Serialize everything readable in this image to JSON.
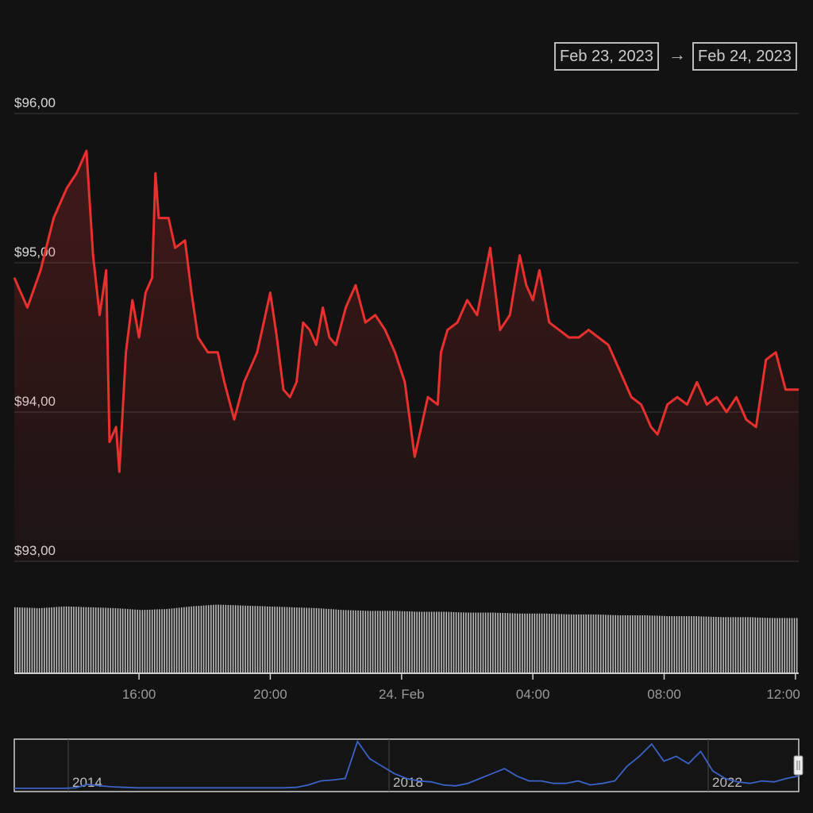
{
  "range_selector": {
    "from": "Feb 23, 2023",
    "separator": "→",
    "to": "Feb 24, 2023"
  },
  "colors": {
    "background": "#121212",
    "price_line": "#e8302e",
    "volume_bars": "#bdbdbd",
    "navigator_line": "#3b62c4",
    "grid": "#3a3a3a"
  },
  "chart_data": [
    {
      "type": "line",
      "title": "",
      "xlabel": "",
      "ylabel": "",
      "ylim": [
        93,
        96
      ],
      "y_ticks": [
        "$93,00",
        "$94,00",
        "$95,00",
        "$96,00"
      ],
      "x_ticks": [
        "16:00",
        "20:00",
        "24. Feb",
        "04:00",
        "08:00",
        "12:00"
      ],
      "x_range_hours": [
        12.2,
        36.1
      ],
      "grid": "horizontal",
      "series": [
        {
          "x": [
            12.2,
            12.6,
            13.0,
            13.4,
            13.8,
            14.1,
            14.4,
            14.6,
            14.8,
            15.0,
            15.1,
            15.3,
            15.4,
            15.6,
            15.8,
            16.0,
            16.2,
            16.4,
            16.5,
            16.6,
            16.9,
            17.1,
            17.4,
            17.6,
            17.8,
            18.1,
            18.4,
            18.6,
            18.9,
            19.2,
            19.6,
            19.8,
            20.0,
            20.2,
            20.4,
            20.6,
            20.8,
            21.0,
            21.2,
            21.4,
            21.6,
            21.8,
            22.0,
            22.3,
            22.6,
            22.9,
            23.2,
            23.5,
            23.8,
            24.1,
            24.4,
            24.8,
            25.1,
            25.2,
            25.4,
            25.7,
            26.0,
            26.3,
            26.7,
            27.0,
            27.3,
            27.6,
            27.8,
            28.0,
            28.2,
            28.5,
            28.8,
            29.1,
            29.4,
            29.7,
            30.0,
            30.3,
            30.7,
            31.0,
            31.3,
            31.6,
            31.8,
            32.1,
            32.4,
            32.7,
            33.0,
            33.3,
            33.6,
            33.9,
            34.2,
            34.5,
            34.8,
            35.1,
            35.4,
            35.7,
            35.9,
            36.1
          ],
          "values": [
            94.9,
            94.7,
            94.95,
            95.3,
            95.5,
            95.6,
            95.75,
            95.05,
            94.65,
            94.95,
            93.8,
            93.9,
            93.6,
            94.4,
            94.75,
            94.5,
            94.8,
            94.9,
            95.6,
            95.3,
            95.3,
            95.1,
            95.15,
            94.8,
            94.5,
            94.4,
            94.4,
            94.2,
            93.95,
            94.2,
            94.4,
            94.6,
            94.8,
            94.5,
            94.15,
            94.1,
            94.2,
            94.6,
            94.55,
            94.45,
            94.7,
            94.5,
            94.45,
            94.7,
            94.85,
            94.6,
            94.65,
            94.55,
            94.4,
            94.2,
            93.7,
            94.1,
            94.05,
            94.4,
            94.55,
            94.6,
            94.75,
            94.65,
            95.1,
            94.55,
            94.65,
            95.05,
            94.85,
            94.75,
            94.95,
            94.6,
            94.55,
            94.5,
            94.5,
            94.55,
            94.5,
            94.45,
            94.25,
            94.1,
            94.05,
            93.9,
            93.85,
            94.05,
            94.1,
            94.05,
            94.2,
            94.05,
            94.1,
            94.0,
            94.1,
            93.95,
            93.9,
            94.35,
            94.4,
            94.15,
            94.15,
            94.15
          ]
        }
      ]
    },
    {
      "type": "bar",
      "title": "",
      "note": "volume",
      "values_relative": [
        0.73,
        0.72,
        0.74,
        0.73,
        0.72,
        0.7,
        0.71,
        0.74,
        0.76,
        0.75,
        0.74,
        0.73,
        0.72,
        0.7,
        0.69,
        0.69,
        0.68,
        0.68,
        0.67,
        0.67,
        0.66,
        0.66,
        0.65,
        0.65,
        0.64,
        0.64,
        0.63,
        0.63,
        0.62,
        0.62,
        0.61,
        0.61
      ]
    },
    {
      "type": "area",
      "title": "",
      "note": "navigator",
      "x_ticks": [
        "2014",
        "2018",
        "2022"
      ],
      "values_relative": [
        0.05,
        0.05,
        0.05,
        0.05,
        0.05,
        0.06,
        0.13,
        0.1,
        0.08,
        0.07,
        0.06,
        0.06,
        0.06,
        0.06,
        0.06,
        0.06,
        0.06,
        0.06,
        0.06,
        0.06,
        0.06,
        0.06,
        0.06,
        0.07,
        0.12,
        0.2,
        0.22,
        0.25,
        1.0,
        0.65,
        0.5,
        0.35,
        0.25,
        0.2,
        0.18,
        0.12,
        0.1,
        0.15,
        0.25,
        0.35,
        0.45,
        0.3,
        0.2,
        0.2,
        0.15,
        0.15,
        0.2,
        0.12,
        0.15,
        0.2,
        0.5,
        0.7,
        0.95,
        0.6,
        0.7,
        0.55,
        0.8,
        0.4,
        0.25,
        0.18,
        0.15,
        0.2,
        0.18,
        0.25,
        0.3
      ]
    }
  ]
}
